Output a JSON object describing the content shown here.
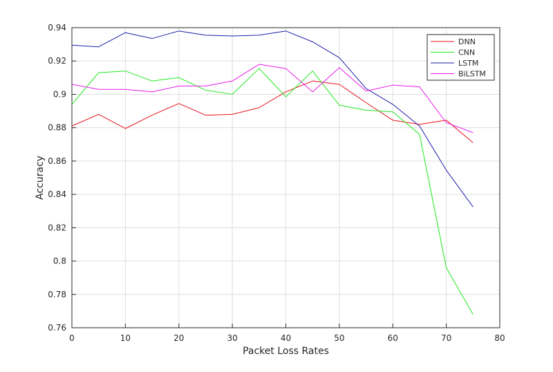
{
  "chart_data": {
    "type": "line",
    "title": "",
    "xlabel": "Packet Loss Rates",
    "ylabel": "Accuracy",
    "xlim": [
      0,
      80
    ],
    "ylim": [
      0.76,
      0.94
    ],
    "xticks": [
      0,
      10,
      20,
      30,
      40,
      50,
      60,
      70,
      80
    ],
    "xtick_labels": [
      "0",
      "10",
      "20",
      "30",
      "40",
      "50",
      "60",
      "70",
      "80"
    ],
    "yticks": [
      0.76,
      0.78,
      0.8,
      0.82,
      0.84,
      0.86,
      0.88,
      0.9,
      0.92,
      0.94
    ],
    "ytick_labels": [
      "0.76",
      "0.78",
      "0.8",
      "0.82",
      "0.84",
      "0.86",
      "0.88",
      "0.9",
      "0.92",
      "0.94"
    ],
    "grid": true,
    "legend_position": "top-right",
    "x": [
      0,
      5,
      10,
      15,
      20,
      25,
      30,
      35,
      40,
      45,
      50,
      55,
      60,
      65,
      70,
      75
    ],
    "series": [
      {
        "name": "DNN",
        "color": "#e8111b",
        "values": [
          0.881,
          0.888,
          0.8795,
          0.8875,
          0.8945,
          0.8875,
          0.888,
          0.892,
          0.9015,
          0.908,
          0.906,
          0.895,
          0.8845,
          0.882,
          0.8845,
          0.871
        ]
      },
      {
        "name": "CNN",
        "color": "#1ee81b",
        "values": [
          0.894,
          0.913,
          0.914,
          0.908,
          0.91,
          0.9025,
          0.9,
          0.9155,
          0.8985,
          0.914,
          0.8935,
          0.8905,
          0.8895,
          0.876,
          0.796,
          0.768
        ]
      },
      {
        "name": "LSTM",
        "color": "#1b1ba8",
        "values": [
          0.9295,
          0.9285,
          0.937,
          0.9335,
          0.938,
          0.9355,
          0.935,
          0.9355,
          0.938,
          0.9315,
          0.922,
          0.9035,
          0.894,
          0.881,
          0.8545,
          0.8325
        ]
      },
      {
        "name": "BiLSTM",
        "color": "#e81be8",
        "values": [
          0.906,
          0.903,
          0.903,
          0.9015,
          0.905,
          0.905,
          0.908,
          0.918,
          0.9155,
          0.9015,
          0.916,
          0.902,
          0.9055,
          0.9045,
          0.883,
          0.877
        ]
      }
    ]
  }
}
